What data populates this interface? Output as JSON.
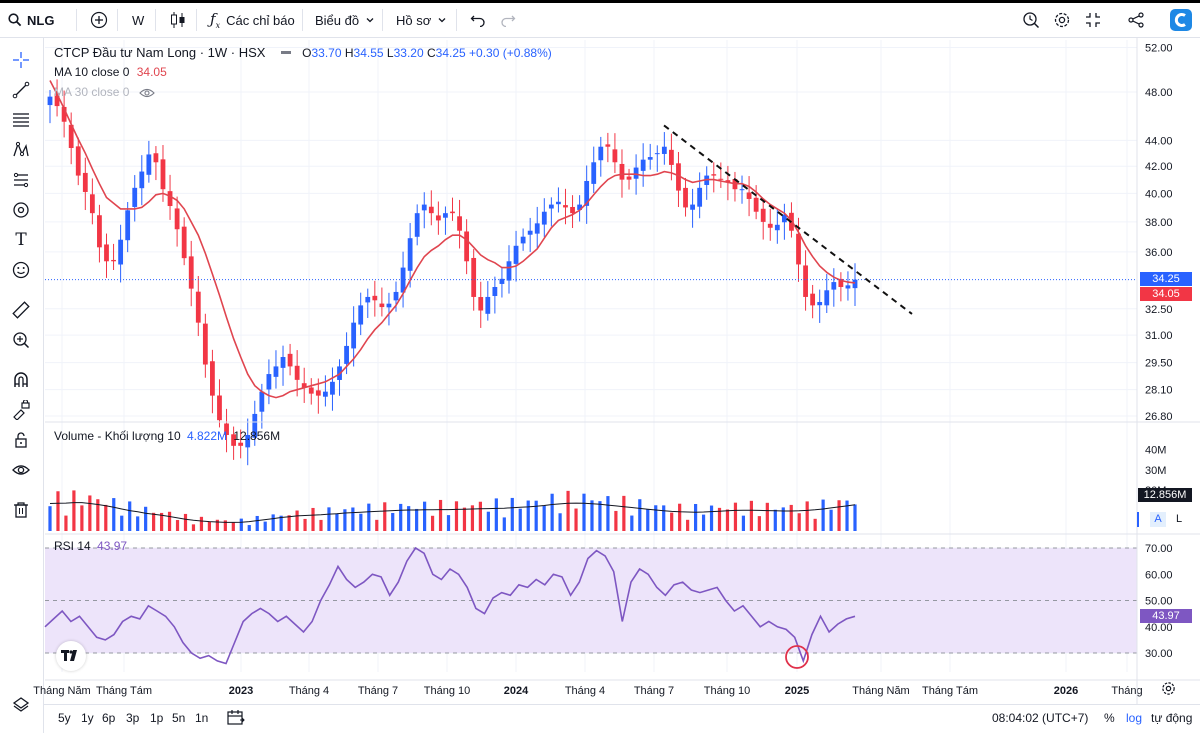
{
  "topbar": {
    "symbol": "NLG",
    "interval": "W",
    "indicators_label": "Các chỉ báo",
    "chart_menu_label": "Biểu đồ",
    "profile_menu_label": "Hồ sơ"
  },
  "legend": {
    "title": "CTCP Đầu tư Nam Long · 1W · HSX",
    "open_label": "O",
    "open": "33.70",
    "high_label": "H",
    "high": "34.55",
    "low_label": "L",
    "low": "33.20",
    "close_label": "C",
    "close": "34.25",
    "change": "+0.30 (+0.88%)",
    "ma10_label": "MA 10 close 0",
    "ma10_value": "34.05",
    "ma30_label": "MA 30 close 0",
    "volume_label": "Volume - Khối lượng 10",
    "volume_value": "4.822M",
    "volume_ma_value": "12.856M",
    "rsi_label": "RSI 14",
    "rsi_value": "43.97"
  },
  "badges": {
    "price_last": "34.25",
    "ma_last": "34.05",
    "volume_ma": "12.856M",
    "rsi": "43.97",
    "auto": "A",
    "log": "L"
  },
  "bottombar": {
    "ranges": [
      "5y",
      "1y",
      "6p",
      "3p",
      "1p",
      "5n",
      "1n"
    ],
    "time": "08:04:02 (UTC+7)",
    "percent": "%",
    "log": "log",
    "auto": "tự động"
  },
  "colors": {
    "up": "#2962ff",
    "down": "#f23645",
    "ma10": "#e0454f",
    "rsi": "#7e57c2",
    "rsi_band": "#ede4fa",
    "trendline": "#111111"
  },
  "icons": [
    "search-icon",
    "add-symbol-icon",
    "candles-icon",
    "fx-icon",
    "undo-icon",
    "redo-icon",
    "replay-icon",
    "settings-icon",
    "fullscreen-icon",
    "share-icon",
    "brand-icon",
    "crosshair-icon",
    "trend-line-icon",
    "fib-icon",
    "pattern-icon",
    "projection-icon",
    "brush-icon",
    "text-icon",
    "emoji-icon",
    "ruler-icon",
    "zoom-icon",
    "magnet-icon",
    "lock-draw-icon",
    "lock-icon",
    "eye-icon",
    "trash-icon",
    "layers-icon",
    "tradingview-logo",
    "eye-hide-icon",
    "gear-icon",
    "date-range-icon"
  ],
  "chart_data": {
    "type": "candlestick",
    "title": "CTCP Đầu tư Nam Long · 1W · HSX",
    "price_scale": "log",
    "price_ticks": [
      "52.00",
      "48.00",
      "44.00",
      "42.00",
      "40.00",
      "38.00",
      "36.00",
      "32.50",
      "31.00",
      "29.50",
      "28.10",
      "26.80"
    ],
    "time_ticks": [
      "Tháng Năm",
      "Tháng Tám",
      "2023",
      "Tháng 4",
      "Tháng 7",
      "Tháng 10",
      "2024",
      "Tháng 4",
      "Tháng 7",
      "Tháng 10",
      "2025",
      "Tháng Năm",
      "Tháng Tám",
      "2026",
      "Tháng"
    ],
    "volume_ticks": [
      "40M",
      "30M",
      "20M"
    ],
    "rsi_ticks": [
      "70.00",
      "60.00",
      "50.00",
      "40.00",
      "30.00"
    ],
    "rsi_band": [
      30,
      70
    ],
    "rsi_mid": 50,
    "close_path": [
      47.6,
      46.8,
      45.5,
      43.4,
      41.3,
      40.1,
      38.6,
      36.3,
      35.4,
      35.4,
      36.8,
      38.8,
      40.4,
      41.6,
      42.9,
      42.3,
      40.3,
      39.1,
      37.5,
      35.6,
      33.7,
      31.7,
      29.4,
      27.8,
      26.6,
      25.9,
      25.4,
      25.4,
      25.9,
      26.9,
      28.0,
      28.9,
      29.3,
      29.8,
      29.3,
      28.6,
      28.2,
      27.9,
      27.8,
      28.0,
      28.5,
      29.3,
      30.4,
      31.7,
      32.7,
      33.2,
      33.0,
      32.6,
      32.8,
      33.5,
      35.0,
      36.9,
      38.6,
      39.2,
      38.6,
      38.1,
      38.6,
      38.6,
      37.4,
      35.4,
      33.2,
      32.4,
      33.2,
      33.8,
      34.3,
      35.4,
      36.4,
      37.0,
      37.4,
      37.9,
      38.7,
      39.2,
      39.4,
      39.0,
      38.6,
      39.2,
      40.9,
      42.3,
      43.5,
      43.5,
      42.3,
      41.0,
      41.0,
      41.9,
      42.5,
      42.7,
      43.0,
      43.5,
      42.1,
      40.2,
      39.0,
      39.2,
      40.4,
      41.3,
      41.3,
      41.0,
      40.8,
      40.3,
      40.3,
      39.6,
      38.7,
      38.0,
      37.6,
      37.8,
      38.5,
      37.4,
      35.2,
      33.2,
      32.7,
      32.9,
      33.6,
      34.1,
      33.8,
      33.9,
      34.25
    ],
    "ma10_path": [
      49.0,
      47.8,
      46.6,
      45.3,
      44.1,
      43.0,
      41.8,
      40.7,
      39.7,
      39.3,
      38.9,
      38.9,
      38.9,
      39.0,
      39.4,
      39.9,
      40.0,
      39.8,
      39.5,
      38.9,
      38.0,
      37.1,
      35.9,
      34.6,
      33.3,
      32.0,
      30.8,
      29.8,
      28.9,
      28.3,
      28.0,
      27.8,
      27.7,
      27.8,
      28.0,
      28.1,
      28.2,
      28.3,
      28.4,
      28.5,
      28.7,
      28.9,
      29.3,
      29.7,
      30.2,
      30.8,
      31.3,
      31.7,
      32.2,
      32.7,
      33.4,
      34.2,
      35.0,
      35.7,
      36.1,
      36.4,
      36.8,
      37.1,
      37.1,
      36.8,
      36.3,
      35.8,
      35.5,
      35.3,
      35.0,
      35.0,
      35.1,
      35.4,
      35.8,
      36.2,
      36.9,
      37.6,
      38.1,
      38.3,
      38.5,
      38.8,
      39.3,
      39.9,
      40.5,
      41.0,
      41.3,
      41.4,
      41.4,
      41.4,
      41.3,
      41.3,
      41.4,
      41.6,
      41.5,
      41.3,
      41.0,
      40.8,
      40.9,
      41.0,
      41.0,
      40.9,
      40.8,
      40.7,
      40.7,
      40.5,
      40.1,
      39.6,
      39.2,
      38.9,
      38.6,
      38.1,
      37.3,
      36.4,
      35.7,
      35.1,
      34.7,
      34.4,
      34.2,
      34.1,
      34.05
    ],
    "volume_ma_path_m": [
      13.5,
      13.6,
      13.7,
      13.9,
      13.9,
      13.5,
      13.0,
      12.4,
      11.6,
      10.8,
      10.0,
      9.4,
      8.7,
      8.2,
      7.7,
      7.1,
      6.4,
      5.8,
      5.3,
      4.9,
      4.6,
      4.4,
      4.2,
      4.2,
      4.3,
      4.6,
      5.1,
      5.6,
      6.1,
      6.6,
      7.0,
      7.4,
      7.6,
      7.8,
      8.0,
      8.3,
      8.5,
      8.8,
      9.0,
      9.2,
      9.4,
      9.6,
      9.8,
      10.0,
      10.2,
      10.3,
      10.3,
      10.4,
      10.4,
      10.5,
      10.5,
      10.6,
      10.7,
      10.8,
      10.9,
      11.0,
      11.1,
      11.2,
      11.4,
      11.6,
      11.8,
      12.1,
      12.5,
      13.0,
      13.3,
      13.6,
      13.7,
      13.6,
      13.4,
      13.1,
      12.7,
      12.3,
      11.9,
      11.5,
      11.1,
      10.7,
      10.3,
      9.9,
      9.6,
      9.4,
      9.3,
      9.2,
      9.3,
      9.5,
      9.7,
      9.9,
      10.1,
      10.2,
      10.2,
      10.1,
      10.0,
      9.9,
      9.8,
      9.8,
      9.9,
      10.1,
      10.4,
      10.8,
      11.3,
      11.8,
      12.3,
      12.856
    ],
    "rsi_path": [
      40.0,
      43.0,
      46.0,
      42.0,
      44.0,
      40.0,
      36.0,
      35.0,
      37.0,
      42.0,
      44.0,
      43.0,
      48.0,
      46.0,
      44.0,
      40.0,
      34.0,
      30.0,
      28.0,
      29.0,
      27.0,
      26.0,
      34.0,
      42.0,
      45.0,
      47.0,
      45.0,
      42.0,
      44.0,
      41.0,
      38.0,
      42.0,
      50.0,
      56.0,
      63.0,
      58.0,
      55.0,
      57.0,
      60.0,
      59.0,
      52.0,
      57.0,
      65.0,
      70.0,
      68.0,
      60.0,
      58.0,
      62.0,
      60.0,
      55.0,
      47.0,
      45.0,
      51.0,
      53.0,
      52.0,
      56.0,
      55.0,
      58.0,
      56.0,
      60.0,
      59.0,
      52.0,
      57.0,
      66.0,
      69.0,
      67.0,
      61.0,
      42.0,
      57.0,
      62.0,
      60.0,
      55.0,
      52.0,
      56.0,
      57.0,
      54.0,
      53.0,
      54.0,
      55.0,
      50.0,
      46.0,
      48.0,
      44.0,
      40.0,
      42.0,
      40.0,
      39.0,
      36.0,
      27.0,
      37.0,
      44.0,
      38.0,
      41.0,
      43.0,
      43.97
    ],
    "trendline": {
      "from": {
        "price": 45.2
      },
      "to": {
        "price": 32.2
      }
    },
    "last_price": 34.25,
    "last_ma": 34.05
  }
}
